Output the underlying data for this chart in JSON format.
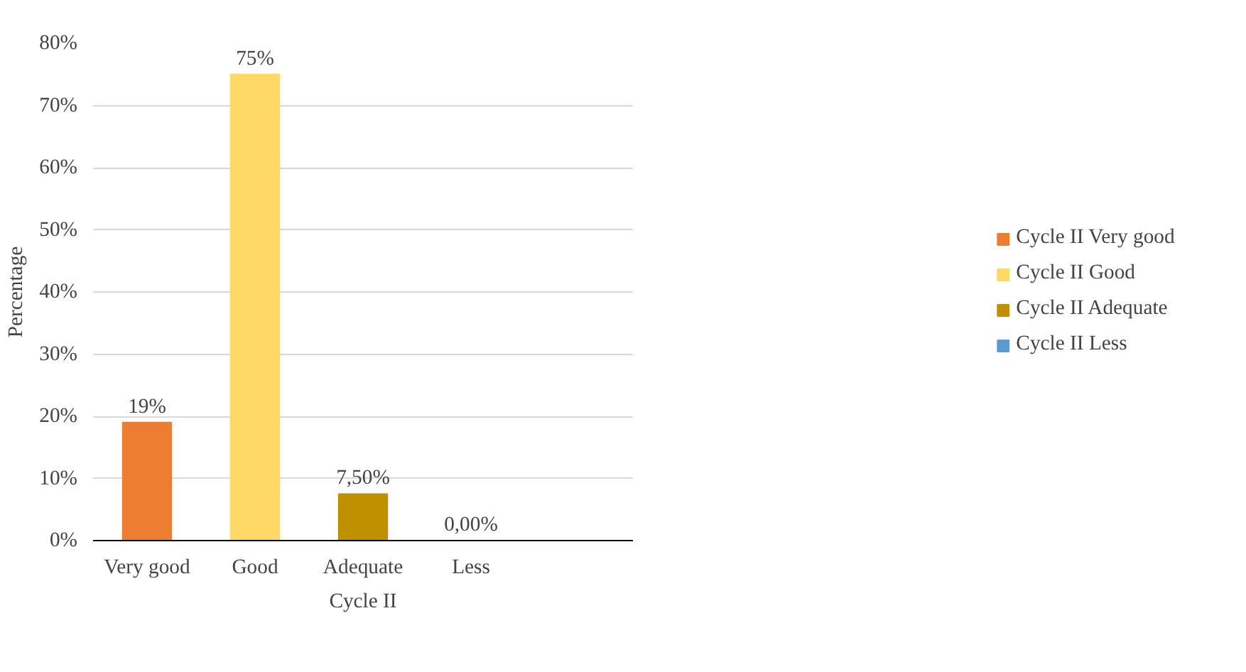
{
  "chart_data": {
    "type": "bar",
    "xlabel": "Cycle II",
    "ylabel": "Percentage",
    "categories": [
      "Very good",
      "Good",
      "Adequate",
      "Less",
      null
    ],
    "series": [
      {
        "name": "Cycle II Very good",
        "color": "#ed7d31",
        "values": [
          19,
          null,
          null,
          null,
          null
        ],
        "value_labels": [
          "19%",
          null,
          null,
          null,
          null
        ]
      },
      {
        "name": "Cycle II Good",
        "color": "#ffd966",
        "values": [
          null,
          75,
          null,
          null,
          null
        ],
        "value_labels": [
          null,
          "75%",
          null,
          null,
          null
        ]
      },
      {
        "name": "Cycle II Adequate",
        "color": "#bf9000",
        "values": [
          null,
          null,
          7.5,
          null,
          null
        ],
        "value_labels": [
          null,
          null,
          "7,50%",
          null,
          null
        ]
      },
      {
        "name": "Cycle II Less",
        "color": "#5b9bd5",
        "values": [
          null,
          null,
          null,
          0,
          null
        ],
        "value_labels": [
          null,
          null,
          null,
          "0,00%",
          null
        ]
      }
    ],
    "ylim": [
      0,
      80
    ],
    "yticks": [
      {
        "value": 0,
        "label": "0%"
      },
      {
        "value": 10,
        "label": "10%"
      },
      {
        "value": 20,
        "label": "20%"
      },
      {
        "value": 30,
        "label": "30%"
      },
      {
        "value": 40,
        "label": "40%"
      },
      {
        "value": 50,
        "label": "50%"
      },
      {
        "value": 60,
        "label": "60%"
      },
      {
        "value": 70,
        "label": "70%"
      },
      {
        "value": 80,
        "label": "80%"
      }
    ],
    "grid": "y",
    "legend": "right"
  }
}
